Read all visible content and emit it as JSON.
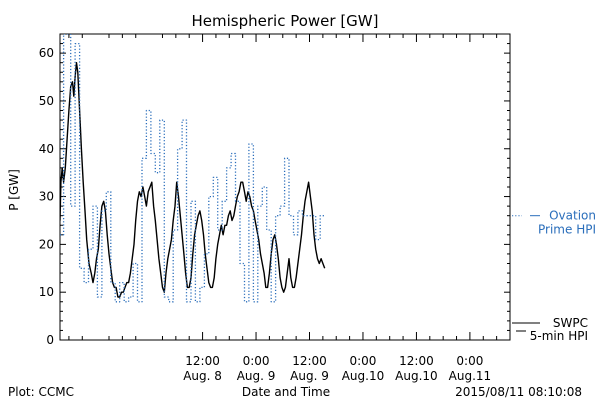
{
  "chart_data": {
    "type": "line",
    "title": "Hemispheric Power [GW]",
    "ylabel": "P [GW]",
    "xlabel": "Date and Time",
    "ylim": [
      0,
      64
    ],
    "yticks": [
      0,
      10,
      20,
      30,
      40,
      50,
      60
    ],
    "xlim": [
      -20,
      81
    ],
    "x_unit": "hours from 2015-08-08 00:00 UT",
    "xticks": [
      {
        "x": 12,
        "line1": "12:00",
        "line2": "Aug. 8"
      },
      {
        "x": 24,
        "line1": "0:00",
        "line2": "Aug. 9"
      },
      {
        "x": 36,
        "line1": "12:00",
        "line2": "Aug. 9"
      },
      {
        "x": 48,
        "line1": "0:00",
        "line2": "Aug.10"
      },
      {
        "x": 60,
        "line1": "12:00",
        "line2": "Aug.10"
      },
      {
        "x": 72,
        "line1": "0:00",
        "line2": "Aug.11"
      }
    ],
    "grid": false,
    "legend_position": "right",
    "series": [
      {
        "name": "SWPC 5-min HPI",
        "color": "#000000",
        "style": "solid",
        "points": [
          [
            -20,
            25
          ],
          [
            -19.8,
            33
          ],
          [
            -19.5,
            36
          ],
          [
            -19.2,
            33
          ],
          [
            -18.8,
            36
          ],
          [
            -18.4,
            42
          ],
          [
            -18,
            48
          ],
          [
            -17.6,
            53
          ],
          [
            -17.2,
            54
          ],
          [
            -16.9,
            51
          ],
          [
            -16.6,
            55
          ],
          [
            -16.3,
            58
          ],
          [
            -16,
            56
          ],
          [
            -15.6,
            48
          ],
          [
            -15.2,
            40
          ],
          [
            -14.8,
            33
          ],
          [
            -14.4,
            27
          ],
          [
            -14,
            21
          ],
          [
            -13.5,
            16
          ],
          [
            -13,
            14
          ],
          [
            -12.6,
            12
          ],
          [
            -12.2,
            14
          ],
          [
            -11.8,
            17
          ],
          [
            -11.4,
            19
          ],
          [
            -11,
            24
          ],
          [
            -10.6,
            28
          ],
          [
            -10.2,
            29
          ],
          [
            -9.8,
            27
          ],
          [
            -9.4,
            22
          ],
          [
            -9,
            18
          ],
          [
            -8.6,
            15
          ],
          [
            -8.2,
            12
          ],
          [
            -7.8,
            11
          ],
          [
            -7.4,
            11
          ],
          [
            -7,
            9
          ],
          [
            -6.6,
            9
          ],
          [
            -6.2,
            10
          ],
          [
            -5.8,
            10
          ],
          [
            -5.4,
            11
          ],
          [
            -5,
            12
          ],
          [
            -4.6,
            12
          ],
          [
            -4.2,
            14
          ],
          [
            -3.8,
            17
          ],
          [
            -3.4,
            20
          ],
          [
            -3,
            25
          ],
          [
            -2.6,
            29
          ],
          [
            -2.2,
            31
          ],
          [
            -1.8,
            30
          ],
          [
            -1.4,
            32
          ],
          [
            -1,
            30
          ],
          [
            -0.6,
            28
          ],
          [
            -0.2,
            31
          ],
          [
            0.2,
            32
          ],
          [
            0.6,
            33
          ],
          [
            1,
            28
          ],
          [
            1.4,
            25
          ],
          [
            1.8,
            21
          ],
          [
            2.2,
            17
          ],
          [
            2.6,
            14
          ],
          [
            3,
            11
          ],
          [
            3.4,
            10
          ],
          [
            3.8,
            14
          ],
          [
            4.2,
            17
          ],
          [
            4.6,
            19
          ],
          [
            5,
            21
          ],
          [
            5.4,
            25
          ],
          [
            5.8,
            28
          ],
          [
            6.2,
            33
          ],
          [
            6.6,
            30
          ],
          [
            7,
            26
          ],
          [
            7.4,
            22
          ],
          [
            7.8,
            18
          ],
          [
            8.2,
            14
          ],
          [
            8.6,
            11
          ],
          [
            9,
            11
          ],
          [
            9.4,
            13
          ],
          [
            9.8,
            18
          ],
          [
            10.2,
            22
          ],
          [
            10.6,
            24
          ],
          [
            11,
            26
          ],
          [
            11.4,
            27
          ],
          [
            11.8,
            25
          ],
          [
            12.2,
            22
          ],
          [
            12.6,
            18
          ],
          [
            13,
            15
          ],
          [
            13.4,
            12
          ],
          [
            13.8,
            11
          ],
          [
            14.2,
            11
          ],
          [
            14.6,
            13
          ],
          [
            15,
            17
          ],
          [
            15.4,
            20
          ],
          [
            15.8,
            22
          ],
          [
            16.2,
            24
          ],
          [
            16.6,
            22
          ],
          [
            17,
            24
          ],
          [
            17.4,
            24
          ],
          [
            17.8,
            26
          ],
          [
            18.2,
            27
          ],
          [
            18.6,
            25
          ],
          [
            19,
            26
          ],
          [
            19.4,
            28
          ],
          [
            19.8,
            30
          ],
          [
            20.2,
            31
          ],
          [
            20.6,
            33
          ],
          [
            21,
            33
          ],
          [
            21.4,
            31
          ],
          [
            21.8,
            29
          ],
          [
            22.2,
            31
          ],
          [
            22.6,
            30
          ],
          [
            23,
            28
          ],
          [
            23.4,
            27
          ],
          [
            23.8,
            25
          ],
          [
            24.2,
            23
          ],
          [
            24.6,
            21
          ],
          [
            25,
            18
          ],
          [
            25.4,
            16
          ],
          [
            25.8,
            14
          ],
          [
            26.2,
            11
          ],
          [
            26.6,
            11
          ],
          [
            27,
            14
          ],
          [
            27.4,
            18
          ],
          [
            27.8,
            21
          ],
          [
            28.2,
            22
          ],
          [
            28.6,
            20
          ],
          [
            29,
            17
          ],
          [
            29.4,
            13
          ],
          [
            29.8,
            11
          ],
          [
            30.2,
            10
          ],
          [
            30.6,
            11
          ],
          [
            31,
            14
          ],
          [
            31.4,
            17
          ],
          [
            31.8,
            13
          ],
          [
            32.2,
            11
          ],
          [
            32.6,
            11
          ],
          [
            33,
            13
          ],
          [
            33.4,
            16
          ],
          [
            33.8,
            19
          ],
          [
            34.2,
            22
          ],
          [
            34.6,
            26
          ],
          [
            35,
            29
          ],
          [
            35.4,
            31
          ],
          [
            35.8,
            33
          ],
          [
            36.2,
            30
          ],
          [
            36.6,
            27
          ],
          [
            37,
            22
          ],
          [
            37.4,
            19
          ],
          [
            37.8,
            17
          ],
          [
            38.2,
            16
          ],
          [
            38.6,
            17
          ],
          [
            39,
            16
          ],
          [
            39.4,
            15
          ]
        ]
      },
      {
        "name": "Ovation Prime HPI",
        "color": "#2a6ebb",
        "style": "dotted",
        "points": [
          [
            -20,
            22
          ],
          [
            -19.2,
            22
          ],
          [
            -19.2,
            64
          ],
          [
            -17.6,
            64
          ],
          [
            -17.6,
            28
          ],
          [
            -16.6,
            28
          ],
          [
            -16.6,
            62
          ],
          [
            -15.6,
            62
          ],
          [
            -15.6,
            15
          ],
          [
            -14.6,
            15
          ],
          [
            -14.6,
            12
          ],
          [
            -13.6,
            12
          ],
          [
            -13.6,
            19
          ],
          [
            -12.6,
            19
          ],
          [
            -12.6,
            28
          ],
          [
            -11.6,
            28
          ],
          [
            -11.6,
            9
          ],
          [
            -10.6,
            9
          ],
          [
            -10.6,
            27
          ],
          [
            -9.6,
            27
          ],
          [
            -9.6,
            31
          ],
          [
            -8.6,
            31
          ],
          [
            -8.6,
            12
          ],
          [
            -7.6,
            12
          ],
          [
            -7.6,
            8
          ],
          [
            -6.6,
            8
          ],
          [
            -6.6,
            12
          ],
          [
            -5.6,
            12
          ],
          [
            -5.6,
            8
          ],
          [
            -4.6,
            8
          ],
          [
            -4.6,
            9
          ],
          [
            -3.6,
            9
          ],
          [
            -3.6,
            16
          ],
          [
            -2.6,
            16
          ],
          [
            -2.6,
            8
          ],
          [
            -1.6,
            8
          ],
          [
            -1.6,
            38
          ],
          [
            -0.6,
            38
          ],
          [
            -0.6,
            48
          ],
          [
            0.4,
            48
          ],
          [
            0.4,
            39
          ],
          [
            1.4,
            39
          ],
          [
            1.4,
            35
          ],
          [
            2.4,
            35
          ],
          [
            2.4,
            46
          ],
          [
            3.4,
            46
          ],
          [
            3.4,
            9
          ],
          [
            4.4,
            9
          ],
          [
            4.4,
            8
          ],
          [
            5.4,
            8
          ],
          [
            5.4,
            23
          ],
          [
            6.4,
            23
          ],
          [
            6.4,
            40
          ],
          [
            7.4,
            40
          ],
          [
            7.4,
            46
          ],
          [
            8.4,
            46
          ],
          [
            8.4,
            8
          ],
          [
            9.4,
            8
          ],
          [
            9.4,
            29
          ],
          [
            10.4,
            29
          ],
          [
            10.4,
            8
          ],
          [
            11.4,
            8
          ],
          [
            11.4,
            11
          ],
          [
            12.4,
            11
          ],
          [
            12.4,
            18
          ],
          [
            13.4,
            18
          ],
          [
            13.4,
            30
          ],
          [
            14.4,
            30
          ],
          [
            14.4,
            34
          ],
          [
            15.4,
            34
          ],
          [
            15.4,
            23
          ],
          [
            16.4,
            23
          ],
          [
            16.4,
            29
          ],
          [
            17.4,
            29
          ],
          [
            17.4,
            36
          ],
          [
            18.4,
            36
          ],
          [
            18.4,
            39
          ],
          [
            19.4,
            39
          ],
          [
            19.4,
            29
          ],
          [
            20.4,
            29
          ],
          [
            20.4,
            16
          ],
          [
            21.4,
            16
          ],
          [
            21.4,
            8
          ],
          [
            22.4,
            8
          ],
          [
            22.4,
            41
          ],
          [
            23.4,
            41
          ],
          [
            23.4,
            8
          ],
          [
            24.4,
            8
          ],
          [
            24.4,
            28
          ],
          [
            25.4,
            28
          ],
          [
            25.4,
            32
          ],
          [
            26.4,
            32
          ],
          [
            26.4,
            23
          ],
          [
            27.4,
            23
          ],
          [
            27.4,
            8
          ],
          [
            28.4,
            8
          ],
          [
            28.4,
            26
          ],
          [
            29.4,
            26
          ],
          [
            29.4,
            28
          ],
          [
            30.4,
            28
          ],
          [
            30.4,
            38
          ],
          [
            31.4,
            38
          ],
          [
            31.4,
            26
          ],
          [
            32.4,
            26
          ],
          [
            32.4,
            22
          ],
          [
            33.4,
            22
          ],
          [
            33.4,
            27
          ],
          [
            34.4,
            27
          ],
          [
            34.4,
            26
          ],
          [
            35.4,
            26
          ],
          [
            35.4,
            26
          ],
          [
            37.4,
            26
          ],
          [
            37.4,
            21
          ],
          [
            38.4,
            21
          ],
          [
            38.4,
            26
          ],
          [
            39.4,
            26
          ]
        ]
      }
    ],
    "legend": [
      {
        "series": "Ovation Prime HPI",
        "line1": "Ovation",
        "line2": "Prime HPI"
      },
      {
        "series": "SWPC 5-min HPI",
        "line1": "SWPC",
        "line2": "5-min HPI"
      }
    ]
  },
  "footer": {
    "left": "Plot: CCMC",
    "center": "Date and Time",
    "right": "2015/08/11 08:10:08"
  }
}
